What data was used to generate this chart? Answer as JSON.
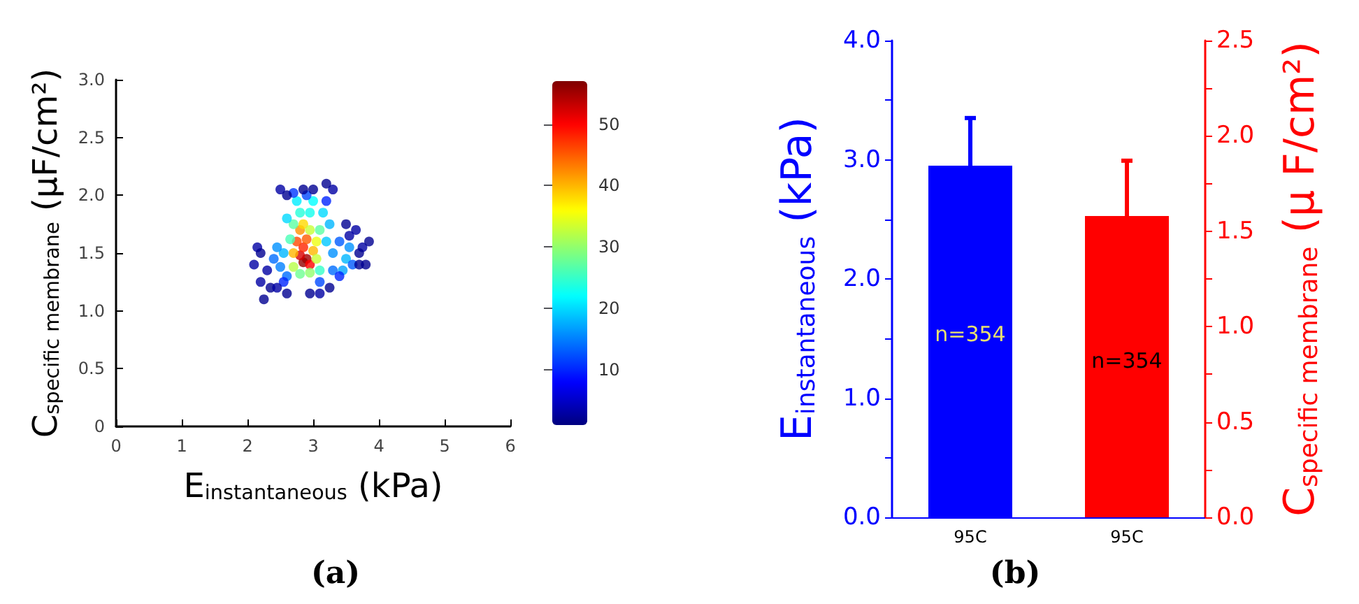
{
  "chart_data": [
    {
      "type": "scatter",
      "xlabel": "E$_{instantaneous}$ (kPa)",
      "ylabel": "C$_{specific membrane}$ (μF/cm²)",
      "annotations": [
        "(a)"
      ],
      "marker": "circle",
      "x": [
        2.85,
        2.9,
        2.8,
        2.95,
        2.85,
        2.75,
        2.9,
        2.8,
        3.0,
        2.7,
        2.85,
        3.05,
        2.95,
        3.05,
        2.7,
        2.95,
        2.8,
        3.1,
        2.7,
        2.65,
        3.1,
        2.8,
        2.95,
        3.0,
        2.75,
        3.15,
        2.6,
        3.2,
        2.55,
        3.25,
        3.5,
        3.45,
        3.55,
        3.3,
        2.45,
        2.5,
        2.4,
        2.6,
        3.3,
        3.6,
        3.4,
        3.1,
        2.9,
        2.7,
        3.2,
        2.55,
        3.4,
        2.1,
        2.15,
        2.2,
        2.2,
        2.25,
        2.35,
        2.3,
        2.45,
        2.6,
        2.95,
        3.1,
        3.25,
        3.7,
        3.75,
        3.85,
        3.65,
        3.5,
        3.3,
        3.2,
        2.5,
        2.6,
        2.85,
        3.0,
        3.55,
        3.8,
        3.7
      ],
      "values": [
        1.42,
        1.45,
        1.48,
        1.4,
        1.55,
        1.6,
        1.62,
        1.7,
        1.52,
        1.5,
        1.75,
        1.6,
        1.7,
        1.45,
        1.38,
        1.33,
        1.32,
        1.7,
        1.75,
        1.62,
        1.35,
        1.85,
        1.85,
        1.95,
        1.95,
        1.85,
        1.8,
        1.6,
        1.5,
        1.75,
        1.45,
        1.35,
        1.55,
        1.5,
        1.55,
        1.38,
        1.45,
        1.3,
        1.35,
        1.4,
        1.6,
        1.25,
        2.0,
        2.02,
        1.95,
        1.25,
        1.3,
        1.4,
        1.55,
        1.5,
        1.25,
        1.1,
        1.2,
        1.35,
        1.2,
        1.15,
        1.15,
        1.15,
        1.2,
        1.4,
        1.55,
        1.6,
        1.7,
        1.75,
        2.05,
        2.1,
        2.05,
        2.0,
        2.05,
        2.05,
        1.65,
        1.4,
        1.5
      ],
      "cvalues": [
        56,
        55,
        52,
        50,
        48,
        46,
        45,
        42,
        40,
        40,
        38,
        35,
        33,
        33,
        32,
        30,
        28,
        27,
        27,
        26,
        25,
        24,
        23,
        22,
        21,
        20,
        20,
        19,
        18,
        18,
        18,
        17,
        16,
        16,
        16,
        15,
        14,
        14,
        14,
        13,
        13,
        12,
        12,
        11,
        10,
        10,
        10,
        3,
        3,
        2,
        3,
        2,
        2,
        3,
        3,
        2,
        2,
        3,
        2,
        2,
        3,
        2,
        3,
        2,
        3,
        2,
        3,
        2,
        2,
        2,
        3,
        2,
        2
      ],
      "xlim": [
        0,
        6
      ],
      "xticks": [
        0,
        1,
        2,
        3,
        4,
        5,
        6
      ],
      "ylim": [
        0,
        3
      ],
      "yticks": [
        0,
        0.5,
        {
          "value": 1,
          "label": "1.0"
        },
        1.5,
        {
          "value": 2,
          "label": "2.0"
        },
        2.5,
        {
          "value": 3,
          "label": "3.0"
        }
      ],
      "clim": [
        1,
        57
      ],
      "cticks": [
        10,
        20,
        30,
        40,
        50
      ]
    },
    {
      "type": "bar",
      "categories": [
        "95C",
        "95C"
      ],
      "ylabel": "E$_{instantaneous}$ (kPa)",
      "y2label": "C$_{specific membrane}$ (μ F/cm²)",
      "annotations": [
        "(b)",
        "n=354",
        "n=354"
      ],
      "series": [
        {
          "color": "#0000ff",
          "values": [
            2.95,
            null
          ],
          "errors": [
            [
              2.95,
              3.35
            ],
            null
          ]
        },
        {
          "color": "#ff0000",
          "axis": "y2",
          "values": [
            null,
            1.58
          ],
          "errors": [
            null,
            [
              1.58,
              1.87
            ]
          ]
        }
      ],
      "ylim": [
        0,
        4
      ],
      "yticks": [
        {
          "value": 0,
          "label": "0.0"
        },
        {
          "value": 0.5,
          "label": null
        },
        {
          "value": 1,
          "label": "1.0"
        },
        {
          "value": 1.5,
          "label": null
        },
        {
          "value": 2,
          "label": "2.0"
        },
        {
          "value": 2.5,
          "label": null
        },
        {
          "value": 3,
          "label": "3.0"
        },
        {
          "value": 3.5,
          "label": null
        },
        {
          "value": 4,
          "label": "4.0"
        }
      ],
      "y2lim": [
        0,
        2.5
      ],
      "y2ticks": [
        {
          "value": 0,
          "label": "0.0"
        },
        {
          "value": 0.25,
          "label": null
        },
        0.5,
        {
          "value": 0.75,
          "label": null
        },
        {
          "value": 1,
          "label": "1.0"
        },
        {
          "value": 1.25,
          "label": null
        },
        1.5,
        {
          "value": 1.75,
          "label": null
        },
        {
          "value": 2,
          "label": "2.0"
        },
        {
          "value": 2.25,
          "label": null
        },
        2.5
      ]
    }
  ]
}
